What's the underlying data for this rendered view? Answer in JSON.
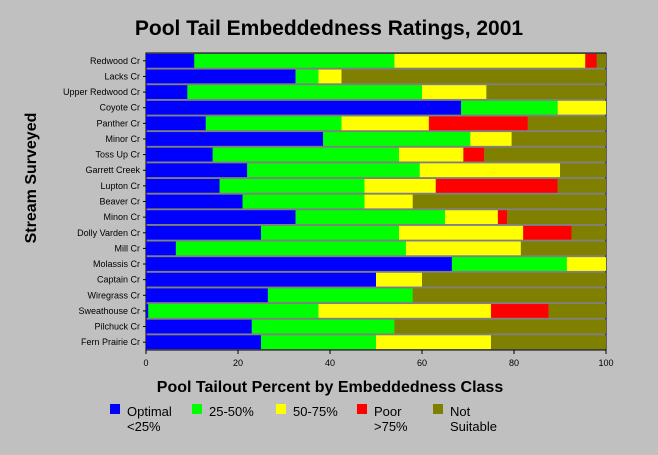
{
  "chart_data": {
    "type": "bar",
    "orientation": "horizontal",
    "stacked": true,
    "title": "Pool Tail Embeddedness Ratings, 2001",
    "xlabel": "Pool Tailout Percent by Embeddedness Class",
    "ylabel": "Stream Surveyed",
    "xlim": [
      0,
      100
    ],
    "xticks": [
      "0",
      "20",
      "40",
      "60",
      "80",
      "100"
    ],
    "grid": false,
    "legend_position": "bottom",
    "categories": [
      "Redwood Cr",
      "Lacks Cr",
      "Upper Redwood Cr",
      "Coyote Cr",
      "Panther Cr",
      "Minor Cr",
      "Toss Up Cr",
      "Garrett Creek",
      "Lupton Cr",
      "Beaver Cr",
      "Minon Cr",
      "Dolly Varden Cr",
      "Mill Cr",
      "Molassis Cr",
      "Captain Cr",
      "Wiregrass Cr",
      "Sweathouse Cr",
      "Pilchuck Cr",
      "Fern Prairie Cr"
    ],
    "series": [
      {
        "name": "Optimal <25%",
        "legend_lines": [
          "Optimal",
          "<25%"
        ],
        "color": "#0000ff",
        "values": [
          10.5,
          32.5,
          9,
          68.5,
          13,
          38.5,
          14.5,
          22,
          16,
          21,
          32.5,
          25,
          6.5,
          66.5,
          50,
          26.5,
          0.5,
          23,
          25
        ]
      },
      {
        "name": "25-50%",
        "legend_lines": [
          "25-50%"
        ],
        "color": "#00ff00",
        "values": [
          43.5,
          5,
          51,
          21,
          29.5,
          32,
          40.5,
          37.5,
          31.5,
          26.5,
          32.5,
          30,
          50,
          25,
          0,
          31.5,
          37,
          31,
          25
        ]
      },
      {
        "name": "50-75%",
        "legend_lines": [
          "50-75%"
        ],
        "color": "#ffff00",
        "values": [
          41.5,
          5,
          14,
          10.5,
          19,
          9,
          14,
          30.5,
          15.5,
          10.5,
          11.5,
          27,
          25,
          8.5,
          10,
          0,
          37.5,
          0,
          25
        ]
      },
      {
        "name": "Poor >75%",
        "legend_lines": [
          "Poor",
          ">75%"
        ],
        "color": "#ff0000",
        "values": [
          2.5,
          0,
          0,
          0,
          21.5,
          0,
          4.5,
          0,
          26.5,
          0,
          2,
          10.5,
          0,
          0,
          0,
          0,
          12.5,
          0,
          0
        ]
      },
      {
        "name": "Not Suitable",
        "legend_lines": [
          "Not",
          "Suitable"
        ],
        "color": "#808000",
        "values": [
          2,
          57.5,
          26,
          0,
          17,
          20.5,
          26.5,
          10,
          10.5,
          42,
          21.5,
          7.5,
          18.5,
          0,
          40,
          42,
          12.5,
          46,
          25
        ]
      }
    ]
  }
}
